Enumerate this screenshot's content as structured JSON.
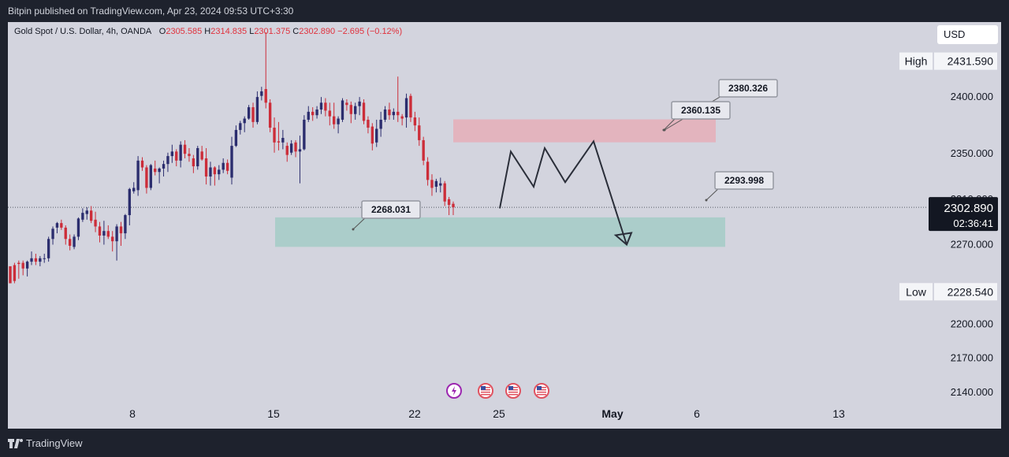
{
  "header": {
    "publisher_text": "Bitpin published on TradingView.com, Apr 23, 2024 09:53 UTC+3:30"
  },
  "legend": {
    "symbol": "Gold Spot / U.S. Dollar, 4h, OANDA",
    "o_label": "O",
    "o": "2305.585",
    "h_label": "H",
    "h": "2314.835",
    "l_label": "L",
    "l": "2301.375",
    "c_label": "C",
    "c": "2302.890",
    "change": "−2.695 (−0.12%)"
  },
  "currency": "USD",
  "footer": {
    "brand": "TradingView"
  },
  "colors": {
    "background": "#d3d4de",
    "frame": "#1e222d",
    "up_candle": "#2b2d6e",
    "down_candle": "#cc2d39",
    "supply_zone": "#e8a9b3",
    "demand_zone": "#a3cbc7",
    "price_badge": "#131722"
  },
  "events": [
    {
      "icon": "lightning-icon"
    },
    {
      "icon": "us-flag-icon"
    },
    {
      "icon": "us-flag-icon"
    },
    {
      "icon": "us-flag-icon"
    }
  ],
  "chart_data": {
    "type": "candlestick",
    "title": "",
    "xlabel": "",
    "ylabel": "",
    "ylim": [
      2108,
      2466
    ],
    "x_ticks": [
      "8",
      "15",
      "22",
      "25",
      "May",
      "6",
      "13"
    ],
    "y_ticks": [
      "2400.000",
      "2350.000",
      "2310.000",
      "2270.000",
      "2200.000",
      "2170.000",
      "2140.000"
    ],
    "high": {
      "label": "High",
      "value": "2431.590"
    },
    "low": {
      "label": "Low",
      "value": "2228.540"
    },
    "current_price": {
      "value": "2302.890",
      "countdown": "02:36:41"
    },
    "zones": [
      {
        "name": "supply",
        "from": 2360.135,
        "to": 2380.326
      },
      {
        "name": "demand",
        "from": 2268.031,
        "to": 2293.998
      }
    ],
    "annotations": [
      "2380.326",
      "2360.135",
      "2293.998",
      "2268.031"
    ],
    "projection_path": {
      "date_axis_range": [
        "Apr 25",
        "May 1"
      ],
      "y": [
        2302,
        2352,
        2321,
        2355,
        2325,
        2361,
        2270
      ]
    },
    "candles_ohlc": [
      [
        2251,
        2250,
        2237,
        2236
      ],
      [
        2252,
        2254,
        2236,
        2238
      ],
      [
        2254,
        2256,
        2240,
        2253
      ],
      [
        2254,
        2256,
        2243,
        2249
      ],
      [
        2249,
        2256,
        2242,
        2255
      ],
      [
        2255,
        2264,
        2252,
        2258
      ],
      [
        2258,
        2262,
        2252,
        2255
      ],
      [
        2255,
        2260,
        2251,
        2258
      ],
      [
        2258,
        2262,
        2254,
        2258
      ],
      [
        2258,
        2277,
        2255,
        2275
      ],
      [
        2275,
        2286,
        2270,
        2284
      ],
      [
        2285,
        2290,
        2280,
        2289
      ],
      [
        2289,
        2292,
        2283,
        2285
      ],
      [
        2285,
        2287,
        2270,
        2275
      ],
      [
        2275,
        2279,
        2265,
        2269
      ],
      [
        2268,
        2279,
        2266,
        2277
      ],
      [
        2277,
        2294,
        2274,
        2293
      ],
      [
        2292,
        2302,
        2290,
        2298
      ],
      [
        2297,
        2303,
        2292,
        2300
      ],
      [
        2300,
        2304,
        2289,
        2291
      ],
      [
        2292,
        2299,
        2281,
        2286
      ],
      [
        2286,
        2290,
        2272,
        2278
      ],
      [
        2278,
        2291,
        2270,
        2282
      ],
      [
        2282,
        2287,
        2275,
        2277
      ],
      [
        2277,
        2282,
        2264,
        2273
      ],
      [
        2273,
        2288,
        2256,
        2286
      ],
      [
        2286,
        2290,
        2269,
        2280
      ],
      [
        2280,
        2297,
        2275,
        2296
      ],
      [
        2296,
        2320,
        2287,
        2319
      ],
      [
        2317,
        2325,
        2315,
        2320
      ],
      [
        2318,
        2348,
        2313,
        2344
      ],
      [
        2344,
        2347,
        2335,
        2338
      ],
      [
        2338,
        2340,
        2315,
        2320
      ],
      [
        2320,
        2341,
        2318,
        2340
      ],
      [
        2337,
        2344,
        2331,
        2334
      ],
      [
        2334,
        2338,
        2324,
        2337
      ],
      [
        2337,
        2344,
        2330,
        2341
      ],
      [
        2341,
        2351,
        2334,
        2348
      ],
      [
        2348,
        2358,
        2342,
        2352
      ],
      [
        2352,
        2354,
        2339,
        2344
      ],
      [
        2344,
        2361,
        2338,
        2358
      ],
      [
        2358,
        2362,
        2346,
        2350
      ],
      [
        2350,
        2355,
        2343,
        2348
      ],
      [
        2346,
        2349,
        2333,
        2339
      ],
      [
        2339,
        2357,
        2336,
        2355
      ],
      [
        2352,
        2357,
        2344,
        2345
      ],
      [
        2346,
        2355,
        2323,
        2330
      ],
      [
        2330,
        2343,
        2322,
        2338
      ],
      [
        2338,
        2339,
        2322,
        2332
      ],
      [
        2332,
        2340,
        2327,
        2336
      ],
      [
        2336,
        2346,
        2333,
        2342
      ],
      [
        2342,
        2345,
        2332,
        2335
      ],
      [
        2329,
        2365,
        2323,
        2357
      ],
      [
        2357,
        2375,
        2356,
        2371
      ],
      [
        2371,
        2379,
        2367,
        2377
      ],
      [
        2377,
        2383,
        2369,
        2381
      ],
      [
        2381,
        2393,
        2380,
        2391
      ],
      [
        2391,
        2395,
        2373,
        2378
      ],
      [
        2378,
        2405,
        2376,
        2400
      ],
      [
        2401,
        2409,
        2397,
        2405
      ],
      [
        2407,
        2457,
        2390,
        2395
      ],
      [
        2395,
        2398,
        2369,
        2373
      ],
      [
        2373,
        2382,
        2351,
        2360
      ],
      [
        2361,
        2378,
        2353,
        2360
      ],
      [
        2360,
        2371,
        2354,
        2364
      ],
      [
        2357,
        2360,
        2343,
        2349
      ],
      [
        2351,
        2362,
        2349,
        2359
      ],
      [
        2360,
        2362,
        2347,
        2352
      ],
      [
        2352,
        2366,
        2324,
        2354
      ],
      [
        2354,
        2384,
        2353,
        2380
      ],
      [
        2380,
        2392,
        2378,
        2387
      ],
      [
        2387,
        2391,
        2379,
        2384
      ],
      [
        2384,
        2392,
        2381,
        2389
      ],
      [
        2389,
        2400,
        2385,
        2395
      ],
      [
        2395,
        2399,
        2383,
        2388
      ],
      [
        2388,
        2395,
        2375,
        2383
      ],
      [
        2383,
        2395,
        2372,
        2376
      ],
      [
        2376,
        2383,
        2368,
        2381
      ],
      [
        2380,
        2399,
        2378,
        2397
      ],
      [
        2395,
        2398,
        2388,
        2393
      ],
      [
        2393,
        2396,
        2377,
        2385
      ],
      [
        2385,
        2395,
        2380,
        2392
      ],
      [
        2392,
        2400,
        2384,
        2396
      ],
      [
        2395,
        2398,
        2376,
        2379
      ],
      [
        2380,
        2383,
        2368,
        2373
      ],
      [
        2374,
        2377,
        2353,
        2359
      ],
      [
        2360,
        2380,
        2356,
        2372
      ],
      [
        2372,
        2387,
        2365,
        2380
      ],
      [
        2380,
        2392,
        2378,
        2389
      ],
      [
        2389,
        2395,
        2380,
        2384
      ],
      [
        2384,
        2390,
        2380,
        2387
      ],
      [
        2387,
        2418,
        2378,
        2384
      ],
      [
        2383,
        2385,
        2375,
        2381
      ],
      [
        2382,
        2403,
        2373,
        2399
      ],
      [
        2401,
        2403,
        2378,
        2382
      ],
      [
        2382,
        2387,
        2370,
        2375
      ],
      [
        2375,
        2382,
        2357,
        2362
      ],
      [
        2362,
        2365,
        2340,
        2344
      ],
      [
        2343,
        2347,
        2322,
        2327
      ],
      [
        2327,
        2332,
        2313,
        2320
      ],
      [
        2321,
        2328,
        2316,
        2326
      ],
      [
        2322,
        2329,
        2316,
        2324
      ],
      [
        2324,
        2326,
        2304,
        2308
      ],
      [
        2310,
        2312,
        2296,
        2305
      ],
      [
        2306,
        2308,
        2296,
        2303
      ]
    ]
  }
}
